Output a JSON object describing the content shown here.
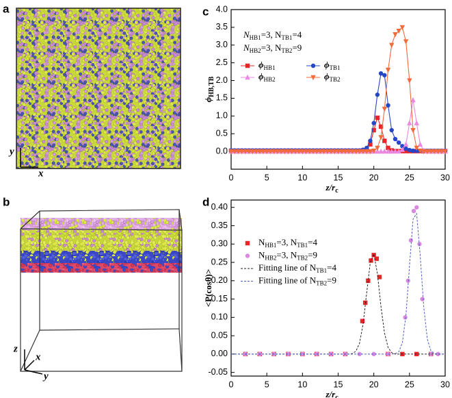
{
  "panel_a": {
    "label": "a",
    "y_axis": "y",
    "x_axis": "x"
  },
  "panel_b": {
    "label": "b",
    "z_axis": "z",
    "x_axis": "x",
    "y_axis": "y"
  },
  "chart_data": [
    {
      "type": "line",
      "label": "c",
      "x_label": [
        "z/r",
        "c"
      ],
      "y_label": [
        "ϕ",
        "HB,TB"
      ],
      "annotations": [
        [
          "N",
          "HB1",
          "=3, N",
          "TB1",
          "=4"
        ],
        [
          "N",
          "HB2",
          "=3, N",
          "TB2",
          "=9"
        ]
      ],
      "xlim": [
        0,
        30
      ],
      "xticks": [
        0,
        5,
        10,
        15,
        20,
        25,
        30
      ],
      "ylim": [
        -0.5,
        4.0
      ],
      "yticks": [
        {
          "value": 0,
          "label": "0.0"
        },
        0.5,
        {
          "value": 1,
          "label": "1.0"
        },
        1.5,
        {
          "value": 2,
          "label": "2.0"
        },
        2.5,
        {
          "value": 3,
          "label": "3.0"
        },
        3.5,
        {
          "value": 4,
          "label": "4.0"
        }
      ],
      "x": [
        0,
        0.5,
        1,
        1.5,
        2,
        2.5,
        3,
        3.5,
        4,
        4.5,
        5,
        5.5,
        6,
        6.5,
        7,
        7.5,
        8,
        8.5,
        9,
        9.5,
        10,
        10.5,
        11,
        11.5,
        12,
        12.5,
        13,
        13.5,
        14,
        14.5,
        15,
        15.5,
        16,
        16.5,
        17,
        17.5,
        18,
        18.5,
        19,
        19.5,
        20,
        20.5,
        21,
        21.5,
        22,
        22.5,
        23,
        23.5,
        24,
        24.5,
        25,
        25.5,
        26,
        26.5,
        27,
        27.5,
        28,
        28.5,
        29,
        29.5,
        30
      ],
      "series": [
        {
          "name": [
            "ϕ",
            "HB1"
          ],
          "color": "#e8262a",
          "marker": "square",
          "line": "solid",
          "values": [
            0.02,
            0.02,
            0.02,
            0.02,
            0.02,
            0.02,
            0.02,
            0.02,
            0.02,
            0.02,
            0.02,
            0.02,
            0.02,
            0.02,
            0.02,
            0.02,
            0.02,
            0.02,
            0.02,
            0.02,
            0.02,
            0.02,
            0.02,
            0.02,
            0.02,
            0.02,
            0.02,
            0.02,
            0.02,
            0.02,
            0.02,
            0.02,
            0.02,
            0.02,
            0.02,
            0.02,
            0.02,
            0.03,
            0.05,
            0.2,
            0.6,
            0.95,
            0.7,
            0.3,
            0.1,
            0.03,
            0.01,
            0.01,
            0.01,
            0.01,
            0.01,
            0.01,
            0.01,
            0.01,
            0.01,
            0.01,
            0.01,
            0.01,
            0.01,
            0.01,
            0.01
          ]
        },
        {
          "name": [
            "ϕ",
            "TB1"
          ],
          "color": "#2646c8",
          "marker": "circle",
          "line": "solid",
          "values": [
            0.03,
            0.03,
            0.03,
            0.03,
            0.03,
            0.03,
            0.03,
            0.03,
            0.03,
            0.03,
            0.03,
            0.03,
            0.03,
            0.03,
            0.03,
            0.03,
            0.03,
            0.03,
            0.03,
            0.03,
            0.03,
            0.03,
            0.03,
            0.03,
            0.03,
            0.03,
            0.03,
            0.03,
            0.03,
            0.03,
            0.03,
            0.03,
            0.03,
            0.03,
            0.03,
            0.03,
            0.03,
            0.05,
            0.1,
            0.3,
            0.8,
            1.6,
            2.2,
            2.15,
            1.3,
            0.6,
            0.35,
            0.25,
            0.15,
            0.08,
            0.04,
            0.02,
            0.02,
            0.02,
            0.02,
            0.02,
            0.02,
            0.02,
            0.02,
            0.02,
            0.02
          ]
        },
        {
          "name": [
            "ϕ",
            "HB2"
          ],
          "color": "#e98ae0",
          "marker": "triangle-up",
          "line": "solid",
          "values": [
            0,
            0,
            0,
            0,
            0,
            0,
            0,
            0,
            0,
            0,
            0,
            0,
            0,
            0,
            0,
            0,
            0,
            0,
            0,
            0,
            0,
            0,
            0,
            0,
            0,
            0,
            0,
            0,
            0,
            0,
            0,
            0,
            0,
            0,
            0,
            0,
            0,
            0,
            0,
            0,
            0,
            0,
            0,
            0,
            0,
            0,
            0,
            0,
            0.05,
            0.2,
            0.8,
            1.45,
            0.8,
            0.2,
            0.03,
            0,
            0,
            0,
            0,
            0,
            0
          ]
        },
        {
          "name": [
            "ϕ",
            "TB2"
          ],
          "color": "#f26b3a",
          "marker": "triangle-down",
          "line": "solid",
          "values": [
            0,
            0,
            0,
            0,
            0,
            0,
            0,
            0,
            0,
            0,
            0,
            0,
            0,
            0,
            0,
            0,
            0,
            0,
            0,
            0,
            0,
            0,
            0,
            0,
            0,
            0,
            0,
            0,
            0,
            0,
            0,
            0,
            0,
            0,
            0,
            0,
            0,
            0,
            0,
            0,
            0.02,
            0.1,
            0.4,
            1.2,
            2.3,
            3.0,
            3.3,
            3.4,
            3.5,
            3.1,
            2.0,
            0.6,
            0.1,
            0.02,
            0,
            0,
            0,
            0,
            0,
            0,
            0
          ]
        }
      ]
    },
    {
      "type": "scatter",
      "label": "d",
      "x_label": [
        "z/r",
        "c"
      ],
      "y_label": "<P(cosθ)>",
      "xlim": [
        0,
        30
      ],
      "xticks": [
        0,
        5,
        10,
        15,
        20,
        25,
        30
      ],
      "ylim": [
        -0.06,
        0.42
      ],
      "yticks": [
        {
          "value": -0.05,
          "label": "-0.05"
        },
        {
          "value": 0,
          "label": "0.00"
        },
        {
          "value": 0.05,
          "label": "0.05"
        },
        {
          "value": 0.1,
          "label": "0.10"
        },
        {
          "value": 0.15,
          "label": "0.15"
        },
        {
          "value": 0.2,
          "label": "0.20"
        },
        {
          "value": 0.25,
          "label": "0.25"
        },
        {
          "value": 0.3,
          "label": "0.30"
        },
        {
          "value": 0.35,
          "label": "0.35"
        },
        {
          "value": 0.4,
          "label": "0.40"
        }
      ],
      "series": [
        {
          "name": [
            "N",
            "HB1",
            "=3, N",
            "TB1",
            "=4"
          ],
          "color": "#e8262a",
          "marker": "square",
          "line": null,
          "x": [
            2,
            4,
            6,
            8,
            10,
            12,
            14,
            16,
            18.4,
            18.8,
            19.2,
            19.6,
            20,
            20.4,
            20.8,
            22,
            24,
            26,
            28
          ],
          "values": [
            0,
            0,
            0,
            0,
            0,
            0,
            0,
            0,
            0.09,
            0.14,
            0.2,
            0.255,
            0.27,
            0.26,
            0.21,
            0,
            0,
            0,
            0
          ]
        },
        {
          "name": [
            "N",
            "HB2",
            "=3, N",
            "TB2",
            "=9"
          ],
          "color": "#d98ae0",
          "marker": "circle",
          "line": null,
          "x": [
            2,
            4,
            6,
            8,
            10,
            12,
            14,
            16,
            18,
            20,
            22,
            24.4,
            24.8,
            25.2,
            25.6,
            26,
            26.4,
            26.8,
            28,
            29
          ],
          "values": [
            0,
            0,
            0,
            0,
            0,
            0,
            0,
            0,
            0,
            0,
            0,
            0.1,
            0.2,
            0.31,
            0.39,
            0.4,
            0.3,
            0.15,
            0,
            0
          ]
        },
        {
          "name": [
            "Fitting line of N",
            "TB1",
            "=4"
          ],
          "color": "#222222",
          "marker": null,
          "line": "dashed",
          "x": [
            0,
            16.5,
            17,
            17.5,
            18,
            18.5,
            19,
            19.5,
            20,
            20.5,
            21,
            21.5,
            22,
            22.5,
            23,
            30
          ],
          "values": [
            0,
            0,
            0.0015,
            0.008,
            0.03,
            0.082,
            0.167,
            0.249,
            0.273,
            0.22,
            0.13,
            0.057,
            0.018,
            0.004,
            0,
            0
          ]
        },
        {
          "name": [
            "Fitting line of N",
            "TB2",
            "=9"
          ],
          "color": "#4a5ec8",
          "marker": null,
          "line": "dashed",
          "x": [
            0,
            22.5,
            23,
            23.5,
            24,
            24.5,
            25,
            25.5,
            26,
            26.5,
            27,
            27.5,
            28,
            28.5,
            29,
            30
          ],
          "values": [
            0,
            0,
            0.001,
            0.006,
            0.031,
            0.105,
            0.24,
            0.368,
            0.383,
            0.269,
            0.128,
            0.041,
            0.009,
            0.001,
            0,
            0
          ]
        }
      ]
    }
  ]
}
